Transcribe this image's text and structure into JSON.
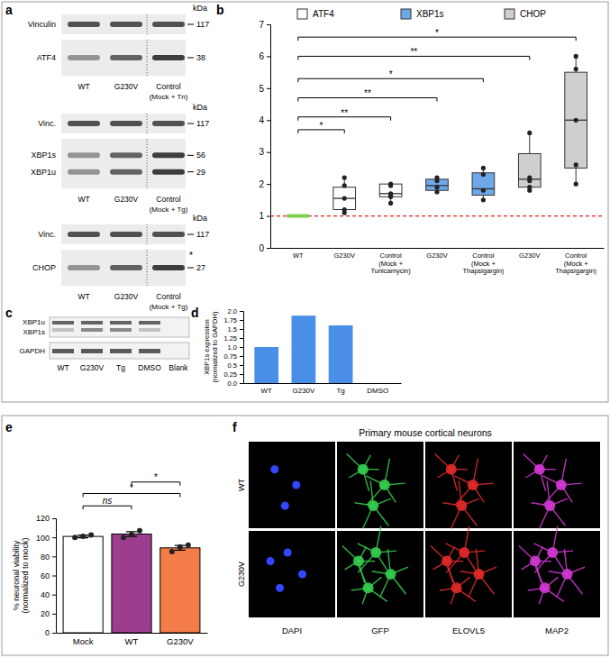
{
  "chart_data": [
    {
      "type": "box",
      "categories": [
        "WT",
        "G230V",
        "Control\n(Mock +\nTunicamycin)",
        "G230V",
        "Control\n(Mock +\nThapsigargin)",
        "G230V",
        "Control\n(Mock +\nThapsigargin)"
      ],
      "colors": [
        "#7ccf4a",
        "#ffffff",
        "#ffffff",
        "#6fa8e8",
        "#6fa8e8",
        "#cfcfcf",
        "#cfcfcf"
      ],
      "series": [
        {
          "name": "ATF4",
          "color": "#ffffff"
        },
        {
          "name": "XBP1s",
          "color": "#6fa8e8"
        },
        {
          "name": "CHOP",
          "color": "#cfcfcf"
        }
      ],
      "stats": [
        {
          "min": 1,
          "q1": 1,
          "median": 1,
          "q3": 1,
          "max": 1
        },
        {
          "min": 1.1,
          "q1": 1.2,
          "median": 1.55,
          "q3": 1.9,
          "max": 2.2,
          "points": [
            2.2,
            1.95,
            1.55,
            1.2,
            1.1
          ]
        },
        {
          "min": 1.4,
          "q1": 1.6,
          "median": 1.7,
          "q3": 2.0,
          "max": 2.0,
          "points": [
            2.0,
            1.95,
            1.7,
            1.65,
            1.6,
            1.4
          ]
        },
        {
          "min": 1.75,
          "q1": 1.8,
          "median": 1.95,
          "q3": 2.15,
          "max": 2.2,
          "points": [
            2.2,
            2.1,
            1.9,
            1.75
          ]
        },
        {
          "min": 1.5,
          "q1": 1.65,
          "median": 1.85,
          "q3": 2.35,
          "max": 2.5,
          "points": [
            2.5,
            2.3,
            1.8,
            1.5
          ]
        },
        {
          "min": 1.8,
          "q1": 1.9,
          "median": 2.15,
          "q3": 2.95,
          "max": 3.6,
          "points": [
            3.6,
            2.2,
            2.1,
            1.9,
            1.8
          ]
        },
        {
          "min": 2.0,
          "q1": 2.5,
          "median": 4.0,
          "q3": 5.5,
          "max": 6.0,
          "points": [
            6.0,
            5.6,
            4.0,
            2.6,
            2.0
          ]
        }
      ],
      "reference_line": 1,
      "ylim": [
        0,
        7
      ],
      "yticks": [
        0,
        1,
        2,
        3,
        4,
        5,
        6,
        7
      ],
      "legend": "top",
      "significance": [
        {
          "from": 0,
          "to": 1,
          "y": 3.7,
          "label": "*"
        },
        {
          "from": 0,
          "to": 2,
          "y": 4.1,
          "label": "**"
        },
        {
          "from": 0,
          "to": 3,
          "y": 4.7,
          "label": "**"
        },
        {
          "from": 0,
          "to": 4,
          "y": 5.3,
          "label": "*"
        },
        {
          "from": 0,
          "to": 5,
          "y": 6.0,
          "label": "**"
        },
        {
          "from": 0,
          "to": 6,
          "y": 6.6,
          "label": "*"
        }
      ]
    },
    {
      "type": "bar",
      "categories": [
        "WT",
        "G230V",
        "Tg",
        "DMSO"
      ],
      "values": [
        1.0,
        1.87,
        1.6,
        0
      ],
      "color": "#4a8fe7",
      "ylim": [
        0,
        2
      ],
      "yticks": [
        {
          "value": 0,
          "label": "0.0"
        },
        0.25,
        0.5,
        0.75,
        {
          "value": 1,
          "label": "1.0"
        },
        1.25,
        1.5,
        1.75,
        {
          "value": 2,
          "label": "2.0"
        }
      ],
      "y_label": "XBP1s expression\n(normalized to GAPDH)"
    },
    {
      "type": "bar",
      "categories": [
        "Mock",
        "WT",
        "G230V"
      ],
      "values": [
        101,
        103.5,
        89
      ],
      "errors": [
        1.5,
        2.5,
        2.5
      ],
      "points": [
        [
          100,
          101,
          102.5
        ],
        [
          100,
          103,
          107
        ],
        [
          85,
          90,
          92
        ]
      ],
      "colors": [
        "#ffffff",
        "#9c3d8e",
        "#f47c48"
      ],
      "ylim": [
        0,
        120
      ],
      "yticks": [
        0,
        20,
        40,
        60,
        80,
        100,
        120
      ],
      "y_label": "% neuronal viability\n(normalized to mock)",
      "significance": [
        {
          "from": 0,
          "to": 1,
          "y": 133,
          "label": "ns"
        },
        {
          "from": 0,
          "to": 2,
          "y": 146,
          "label": "*"
        },
        {
          "from": 1,
          "to": 2,
          "y": 158,
          "label": "*"
        }
      ]
    }
  ],
  "figure": {
    "panel_labels": [
      "a",
      "b",
      "c",
      "d",
      "e",
      "f"
    ],
    "blots": [
      {
        "unit": "kDa",
        "strips": [
          [
            {
              "name": "Vinculin",
              "kda": 117
            }
          ],
          [
            {
              "name": "ATF4",
              "kda": 38
            }
          ]
        ],
        "lanes": [
          "WT",
          "G230V",
          "Control"
        ],
        "control_note": "(Mock + Tn)"
      },
      {
        "unit": "kDa",
        "strips": [
          [
            {
              "name": "Vinc.",
              "kda": 117
            }
          ],
          [
            {
              "name": "XBP1s",
              "kda": 56
            },
            {
              "name": "XBP1u",
              "kda": 29
            }
          ]
        ],
        "lanes": [
          "WT",
          "G230V",
          "Control"
        ],
        "control_note": "(Mock + Tg)"
      },
      {
        "unit": "kDa",
        "strips": [
          [
            {
              "name": "Vinc.",
              "kda": 117
            }
          ],
          [
            {
              "name": "CHOP",
              "kda": 27
            }
          ]
        ],
        "lanes": [
          "WT",
          "G230V",
          "Control"
        ],
        "control_note": "(Mock + Tg)",
        "asterisk": "*"
      }
    ],
    "gel": {
      "rows": [
        "XBP1u",
        "XBP1s"
      ],
      "loading": "GAPDH",
      "lanes": [
        "WT",
        "G230V",
        "Tg",
        "DMSO",
        "Blank"
      ]
    },
    "micrographs": {
      "title": "Primary mouse cortical neurons",
      "rows": [
        "WT",
        "G230V"
      ],
      "channels": [
        "DAPI",
        "GFP",
        "ELOVL5",
        "MAP2"
      ]
    }
  }
}
